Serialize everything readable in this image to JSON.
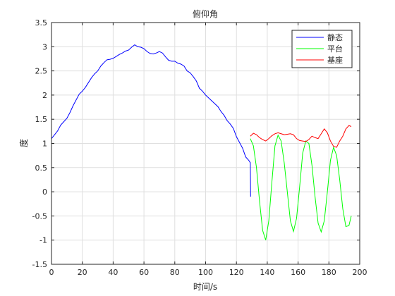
{
  "chart_data": {
    "type": "line",
    "title": "俯仰角",
    "xlabel": "时间/s",
    "ylabel": "度",
    "xlim": [
      0,
      200
    ],
    "ylim": [
      -1.5,
      3.5
    ],
    "grid": true,
    "legend_position": "top-right",
    "x_ticks": [
      0,
      20,
      40,
      60,
      80,
      100,
      120,
      140,
      160,
      180,
      200
    ],
    "y_ticks": [
      -1.5,
      -1,
      -0.5,
      0,
      0.5,
      1,
      1.5,
      2,
      2.5,
      3,
      3.5
    ],
    "x_tick_labels": [
      "0",
      "20",
      "40",
      "60",
      "80",
      "100",
      "120",
      "140",
      "160",
      "180",
      "200"
    ],
    "y_tick_labels": [
      "-1.5",
      "-1",
      "-0.5",
      "0",
      "0.5",
      "1",
      "1.5",
      "2",
      "2.5",
      "3",
      "3.5"
    ],
    "series": [
      {
        "name": "静态",
        "color": "#0000ff",
        "x": [
          0,
          2,
          4,
          6,
          8,
          10,
          12,
          14,
          16,
          18,
          20,
          22,
          24,
          26,
          28,
          30,
          32,
          34,
          36,
          38,
          40,
          42,
          44,
          46,
          48,
          50,
          52,
          54,
          56,
          58,
          60,
          62,
          64,
          66,
          68,
          70,
          72,
          74,
          76,
          78,
          80,
          82,
          84,
          86,
          88,
          90,
          92,
          94,
          96,
          98,
          100,
          102,
          104,
          106,
          108,
          110,
          112,
          114,
          116,
          118,
          120,
          122,
          124,
          126,
          128,
          129,
          129.2
        ],
        "y": [
          1.1,
          1.18,
          1.26,
          1.38,
          1.45,
          1.52,
          1.64,
          1.78,
          1.9,
          2.02,
          2.08,
          2.16,
          2.26,
          2.36,
          2.44,
          2.5,
          2.6,
          2.67,
          2.73,
          2.74,
          2.76,
          2.8,
          2.84,
          2.87,
          2.91,
          2.93,
          2.99,
          3.04,
          3.0,
          2.99,
          2.96,
          2.9,
          2.86,
          2.85,
          2.87,
          2.9,
          2.87,
          2.79,
          2.72,
          2.7,
          2.7,
          2.66,
          2.64,
          2.6,
          2.5,
          2.46,
          2.38,
          2.29,
          2.14,
          2.08,
          2.0,
          1.94,
          1.88,
          1.82,
          1.76,
          1.66,
          1.58,
          1.47,
          1.4,
          1.31,
          1.14,
          1.02,
          0.9,
          0.72,
          0.65,
          0.6,
          -0.1
        ]
      },
      {
        "name": "平台",
        "color": "#00ff00",
        "x": [
          129,
          131,
          133,
          135,
          137,
          139,
          141,
          143,
          145,
          147,
          149,
          151,
          153,
          155,
          157,
          159,
          161,
          163,
          165,
          167,
          169,
          171,
          173,
          175,
          177,
          179,
          181,
          183,
          185,
          187,
          189,
          191,
          193,
          194.5
        ],
        "y": [
          1.1,
          0.95,
          0.5,
          -0.2,
          -0.8,
          -1.0,
          -0.6,
          0.2,
          0.95,
          1.17,
          1.05,
          0.6,
          0.0,
          -0.6,
          -0.82,
          -0.55,
          0.1,
          0.8,
          1.05,
          1.0,
          0.55,
          -0.1,
          -0.65,
          -0.83,
          -0.6,
          0.0,
          0.65,
          0.92,
          0.75,
          0.25,
          -0.35,
          -0.72,
          -0.7,
          -0.5
        ]
      },
      {
        "name": "基座",
        "color": "#ff0000",
        "x": [
          129,
          131,
          133,
          135,
          137,
          139,
          141,
          143,
          145,
          147,
          149,
          151,
          153,
          155,
          157,
          159,
          161,
          163,
          165,
          167,
          169,
          171,
          173,
          175,
          177,
          179,
          181,
          183,
          185,
          187,
          189,
          191,
          193,
          194.5
        ],
        "y": [
          1.15,
          1.21,
          1.18,
          1.12,
          1.08,
          1.05,
          1.1,
          1.16,
          1.2,
          1.22,
          1.2,
          1.18,
          1.19,
          1.2,
          1.18,
          1.1,
          1.06,
          1.05,
          1.04,
          1.08,
          1.15,
          1.12,
          1.1,
          1.2,
          1.3,
          1.22,
          1.05,
          0.94,
          0.92,
          1.05,
          1.15,
          1.3,
          1.37,
          1.35
        ]
      }
    ]
  }
}
